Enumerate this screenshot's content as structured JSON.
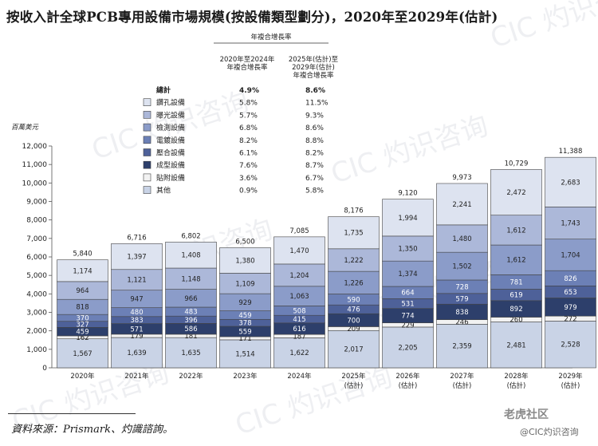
{
  "title": "按收入計全球PCB專用設備市場規模(按設備類型劃分)，2020年至2029年(估計)",
  "unit_label": "百萬美元",
  "cagr_header": "年複合增長率",
  "cagr_col1": [
    "2020年至2024年",
    "年複合增長率"
  ],
  "cagr_col2": [
    "2025年(估計)至",
    "2029年(估計)",
    "年複合增長率"
  ],
  "total_label": "總計",
  "total_cagr": [
    "4.9%",
    "8.6%"
  ],
  "source": "資料來源：Prismark、灼識諮詢。",
  "watermark": "CIC 灼识咨询 China Insights Consultancy",
  "corner_brand": "老虎社区",
  "corner_brand2": "@CIC灼识咨询",
  "chart_data": {
    "type": "bar",
    "stacked": true,
    "categories": [
      "2020年",
      "2021年",
      "2022年",
      "2023年",
      "2024年",
      "2025年(估計)",
      "2026年(估計)",
      "2027年(估計)",
      "2028年(估計)",
      "2029年(估計)"
    ],
    "ylim": [
      0,
      12000
    ],
    "yticks": [
      0,
      1000,
      2000,
      3000,
      4000,
      5000,
      6000,
      7000,
      8000,
      9000,
      10000,
      11000,
      12000
    ],
    "ytick_labels": [
      "0",
      "1,000",
      "2,000",
      "3,000",
      "4,000",
      "5,000",
      "6,000",
      "7,000",
      "8,000",
      "9,000",
      "10,000",
      "11,000",
      "12,000"
    ],
    "totals": [
      5840,
      6716,
      6802,
      6500,
      7085,
      8176,
      9120,
      9973,
      10729,
      11388
    ],
    "total_labels": [
      "5,840",
      "6,716",
      "6,802",
      "6,500",
      "7,085",
      "8,176",
      "9,120",
      "9,973",
      "10,729",
      "11,388"
    ],
    "series": [
      {
        "name": "其他",
        "color": "#c9d3e6",
        "cagr": [
          "0.9%",
          "5.8%"
        ],
        "values": [
          1567,
          1639,
          1635,
          1514,
          1622,
          2017,
          2205,
          2359,
          2481,
          2528
        ],
        "labels": [
          "1,567",
          "1,639",
          "1,635",
          "1,514",
          "1,622",
          "2,017",
          "2,205",
          "2,359",
          "2,481",
          "2,528"
        ]
      },
      {
        "name": "貼附設備",
        "color": "#f2f2f2",
        "cagr": [
          "3.6%",
          "6.7%"
        ],
        "values": [
          162,
          179,
          181,
          171,
          187,
          209,
          229,
          246,
          260,
          272
        ],
        "labels": [
          "162",
          "179",
          "181",
          "171",
          "187",
          "209",
          "229",
          "246",
          "260",
          "272"
        ]
      },
      {
        "name": "成型設備",
        "color": "#2d3f6b",
        "cagr": [
          "7.6%",
          "8.7%"
        ],
        "values": [
          459,
          571,
          586,
          559,
          616,
          700,
          774,
          838,
          892,
          979
        ],
        "labels": [
          "459",
          "571",
          "586",
          "559",
          "616",
          "700",
          "774",
          "838",
          "892",
          "979"
        ]
      },
      {
        "name": "壓合設備",
        "color": "#4e6199",
        "cagr": [
          "6.1%",
          "8.2%"
        ],
        "values": [
          327,
          383,
          396,
          378,
          415,
          476,
          531,
          579,
          619,
          653
        ],
        "labels": [
          "327",
          "383",
          "396",
          "378",
          "415",
          "476",
          "531",
          "579",
          "619",
          "653"
        ]
      },
      {
        "name": "電鍍設備",
        "color": "#6c80b6",
        "cagr": [
          "8.2%",
          "8.8%"
        ],
        "values": [
          370,
          480,
          483,
          459,
          508,
          590,
          664,
          728,
          781,
          826
        ],
        "labels": [
          "370",
          "480",
          "483",
          "459",
          "508",
          "590",
          "664",
          "728",
          "781",
          "826"
        ]
      },
      {
        "name": "檢測設備",
        "color": "#8b9cc9",
        "cagr": [
          "6.8%",
          "8.6%"
        ],
        "values": [
          818,
          947,
          966,
          929,
          1063,
          1226,
          1374,
          1502,
          1612,
          1704
        ],
        "labels": [
          "818",
          "947",
          "966",
          "929",
          "1,063",
          "1,226",
          "1,374",
          "1,502",
          "1,612",
          "1,704"
        ]
      },
      {
        "name": "曝光設備",
        "color": "#acb8d9",
        "cagr": [
          "5.7%",
          "9.3%"
        ],
        "values": [
          964,
          1121,
          1148,
          1109,
          1204,
          1222,
          1350,
          1480,
          1612,
          1743
        ],
        "labels": [
          "964",
          "1,121",
          "1,148",
          "1,109",
          "1,204",
          "1,222",
          "1,350",
          "1,480",
          "1,612",
          "1,743"
        ]
      },
      {
        "name": "鑽孔設備",
        "color": "#dde3f0",
        "cagr": [
          "5.8%",
          "11.5%"
        ],
        "values": [
          1174,
          1397,
          1408,
          1380,
          1470,
          1735,
          1994,
          2241,
          2472,
          2683
        ],
        "labels": [
          "1,174",
          "1,397",
          "1,408",
          "1,380",
          "1,470",
          "1,735",
          "1,994",
          "2,241",
          "2,472",
          "2,683"
        ]
      }
    ],
    "legend_order": [
      "鑽孔設備",
      "曝光設備",
      "檢測設備",
      "電鍍設備",
      "壓合設備",
      "成型設備",
      "貼附設備",
      "其他"
    ],
    "legend_placement": "top-left"
  }
}
